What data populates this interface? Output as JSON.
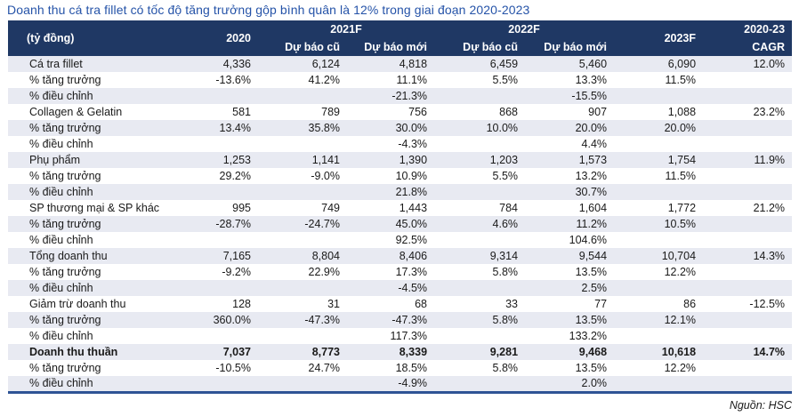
{
  "title": "Doanh thu cá tra fillet có tốc độ tăng trưởng gộp bình quân là 12% trong giai đoạn 2020-2023",
  "source_note": "Nguồn: HSC",
  "colors": {
    "header_bg": "#1F3864",
    "title_text": "#2553A8",
    "row_stripe": "#E8EAF2",
    "bottom_border": "#2E5395"
  },
  "chart_data": {
    "type": "table",
    "title": "Doanh thu cá tra fillet có tốc độ tăng trưởng gộp bình quân là 12% trong giai đoạn 2020-2023",
    "unit": "tỷ đồng",
    "columns": [
      "2020",
      "2021F Dự báo cũ",
      "2021F Dự báo mới",
      "2022F Dự báo cũ",
      "2022F Dự báo mới",
      "2023F",
      "2020-23 CAGR"
    ]
  },
  "table": {
    "unit_label": "(tỷ đồng)",
    "col_groups": [
      {
        "label": "2020"
      },
      {
        "label": "2021F"
      },
      {
        "label": "2022F"
      },
      {
        "label": "2023F"
      },
      {
        "label": "2020-23"
      }
    ],
    "sub_headers": {
      "old_2021": "Dự báo cũ",
      "new_2021": "Dự báo mới",
      "old_2022": "Dự báo cũ",
      "new_2022": "Dự báo mới",
      "cagr": "CAGR"
    },
    "rows": [
      {
        "label": "Cá tra fillet",
        "bold": false,
        "values": [
          "4,336",
          "6,124",
          "4,818",
          "6,459",
          "5,460",
          "6,090",
          "12.0%"
        ]
      },
      {
        "label": "% tăng trưởng",
        "bold": false,
        "values": [
          "-13.6%",
          "41.2%",
          "11.1%",
          "5.5%",
          "13.3%",
          "11.5%",
          ""
        ]
      },
      {
        "label": "% điều chỉnh",
        "bold": false,
        "values": [
          "",
          "",
          "-21.3%",
          "",
          "-15.5%",
          "",
          ""
        ]
      },
      {
        "label": "Collagen & Gelatin",
        "bold": false,
        "values": [
          "581",
          "789",
          "756",
          "868",
          "907",
          "1,088",
          "23.2%"
        ]
      },
      {
        "label": "% tăng trưởng",
        "bold": false,
        "values": [
          "13.4%",
          "35.8%",
          "30.0%",
          "10.0%",
          "20.0%",
          "20.0%",
          ""
        ]
      },
      {
        "label": "% điều chỉnh",
        "bold": false,
        "values": [
          "",
          "",
          "-4.3%",
          "",
          "4.4%",
          "",
          ""
        ]
      },
      {
        "label": "Phụ phẩm",
        "bold": false,
        "values": [
          "1,253",
          "1,141",
          "1,390",
          "1,203",
          "1,573",
          "1,754",
          "11.9%"
        ]
      },
      {
        "label": "% tăng trưởng",
        "bold": false,
        "values": [
          "29.2%",
          "-9.0%",
          "10.9%",
          "5.5%",
          "13.2%",
          "11.5%",
          ""
        ]
      },
      {
        "label": "% điều chỉnh",
        "bold": false,
        "values": [
          "",
          "",
          "21.8%",
          "",
          "30.7%",
          "",
          ""
        ]
      },
      {
        "label": "SP thương mại & SP khác",
        "bold": false,
        "values": [
          "995",
          "749",
          "1,443",
          "784",
          "1,604",
          "1,772",
          "21.2%"
        ]
      },
      {
        "label": "% tăng trưởng",
        "bold": false,
        "values": [
          "-28.7%",
          "-24.7%",
          "45.0%",
          "4.6%",
          "11.2%",
          "10.5%",
          ""
        ]
      },
      {
        "label": "% điều chỉnh",
        "bold": false,
        "values": [
          "",
          "",
          "92.5%",
          "",
          "104.6%",
          "",
          ""
        ]
      },
      {
        "label": "Tổng doanh thu",
        "bold": false,
        "values": [
          "7,165",
          "8,804",
          "8,406",
          "9,314",
          "9,544",
          "10,704",
          "14.3%"
        ]
      },
      {
        "label": "% tăng trưởng",
        "bold": false,
        "values": [
          "-9.2%",
          "22.9%",
          "17.3%",
          "5.8%",
          "13.5%",
          "12.2%",
          ""
        ]
      },
      {
        "label": "% điều chỉnh",
        "bold": false,
        "values": [
          "",
          "",
          "-4.5%",
          "",
          "2.5%",
          "",
          ""
        ]
      },
      {
        "label": "Giảm trừ doanh thu",
        "bold": false,
        "values": [
          "128",
          "31",
          "68",
          "33",
          "77",
          "86",
          "-12.5%"
        ]
      },
      {
        "label": "% tăng trưởng",
        "bold": false,
        "values": [
          "360.0%",
          "-47.3%",
          "-47.3%",
          "5.8%",
          "13.5%",
          "12.1%",
          ""
        ]
      },
      {
        "label": "% điều chỉnh",
        "bold": false,
        "values": [
          "",
          "",
          "117.3%",
          "",
          "133.2%",
          "",
          ""
        ]
      },
      {
        "label": "Doanh thu thuần",
        "bold": true,
        "values": [
          "7,037",
          "8,773",
          "8,339",
          "9,281",
          "9,468",
          "10,618",
          "14.7%"
        ]
      },
      {
        "label": "% tăng trưởng",
        "bold": false,
        "values": [
          "-10.5%",
          "24.7%",
          "18.5%",
          "5.8%",
          "13.5%",
          "12.2%",
          ""
        ]
      },
      {
        "label": "% điều chỉnh",
        "bold": false,
        "values": [
          "",
          "",
          "-4.9%",
          "",
          "2.0%",
          "",
          ""
        ]
      }
    ]
  }
}
